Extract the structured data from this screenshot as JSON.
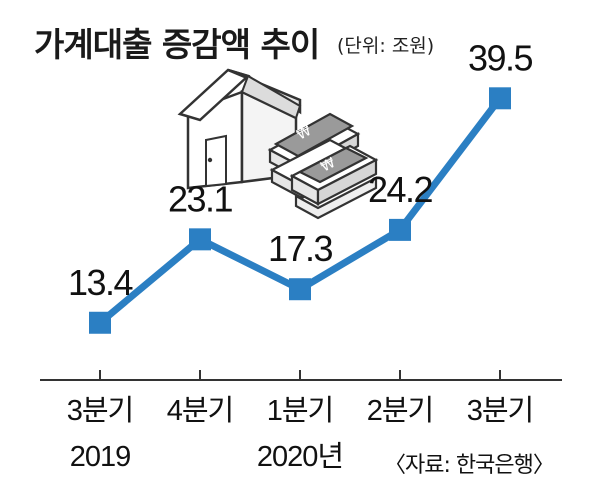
{
  "title": "가계대출 증감액 추이",
  "unit": "(단위: 조원)",
  "source": "〈자료: 한국은행〉",
  "colors": {
    "line": "#2b7fc3",
    "axis": "#333333",
    "text": "#111111"
  },
  "illustration": "house-with-money-icon",
  "chart_data": {
    "type": "line",
    "title": "가계대출 증감액 추이",
    "unit": "조원",
    "categories": [
      "3분기",
      "4분기",
      "1분기",
      "2분기",
      "3분기"
    ],
    "period_labels": [
      "2019",
      "",
      "2020년",
      "",
      ""
    ],
    "series": [
      {
        "values": [
          13.4,
          23.1,
          17.3,
          24.2,
          39.5
        ]
      }
    ],
    "value_labels": [
      "13.4",
      "23.1",
      "17.3",
      "24.2",
      "39.5"
    ],
    "ylim": [
      10,
      40
    ],
    "grid": false,
    "legend": "none"
  }
}
